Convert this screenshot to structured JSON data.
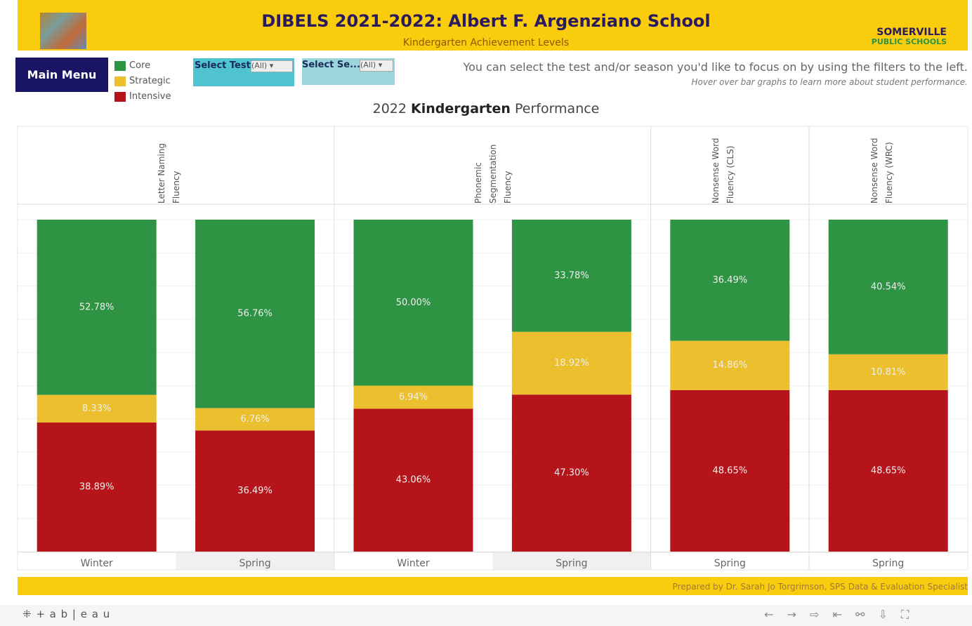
{
  "header": {
    "title": "DIBELS 2021-2022: Albert F. Argenziano School",
    "subtitle": "Kindergarten Achievement Levels",
    "logo": [
      "SOMERVILLE",
      "PUBLIC SCHOOLS"
    ]
  },
  "controls": {
    "main_menu": "Main Menu",
    "filters": [
      {
        "label": "Select Test",
        "value": "(All)"
      },
      {
        "label": "Select Se...",
        "value": "(All)"
      }
    ],
    "instructions": "You can select the test and/or season you'd like to focus on by using the filters to the left.",
    "hint": "Hover over bar graphs to learn more about student performance."
  },
  "chart_data": {
    "type": "bar",
    "stacked": true,
    "title": [
      "2022",
      "Kindergarten",
      "Performance"
    ],
    "panels": [
      {
        "name": "Letter Naming Fluency",
        "categories": [
          "Winter",
          "Spring"
        ]
      },
      {
        "name": "Phonemic Segmentation Fluency",
        "categories": [
          "Winter",
          "Spring"
        ]
      },
      {
        "name": "Nonsense Word Fluency (CLS)",
        "categories": [
          "Spring"
        ]
      },
      {
        "name": "Nonsense Word Fluency (WRC)",
        "categories": [
          "Spring"
        ]
      }
    ],
    "ylim": [
      0,
      100
    ],
    "series": [
      {
        "name": "Intensive",
        "color": "#b5141a",
        "values": [
          38.89,
          36.49,
          43.06,
          47.3,
          48.65,
          48.65
        ],
        "value_labels": [
          "38.89%",
          "36.49%",
          "43.06%",
          "47.30%",
          "48.65%",
          "48.65%"
        ]
      },
      {
        "name": "Strategic",
        "color": "#ebbf2e",
        "values": [
          8.33,
          6.76,
          6.94,
          18.92,
          14.86,
          10.81
        ],
        "value_labels": [
          "8.33%",
          "6.76%",
          "6.94%",
          "18.92%",
          "14.86%",
          "10.81%"
        ]
      },
      {
        "name": "Core",
        "color": "#2e9444",
        "values": [
          52.78,
          56.76,
          50.0,
          33.78,
          36.49,
          40.54
        ],
        "value_labels": [
          "52.78%",
          "56.76%",
          "50.00%",
          "33.78%",
          "36.49%",
          "40.54%"
        ]
      }
    ]
  },
  "footer": "Prepared by Dr. Sarah Jo Torgrimson, SPS Data & Evaluation Specialist",
  "toolbar": {
    "brand": "+ a b | e a u"
  }
}
